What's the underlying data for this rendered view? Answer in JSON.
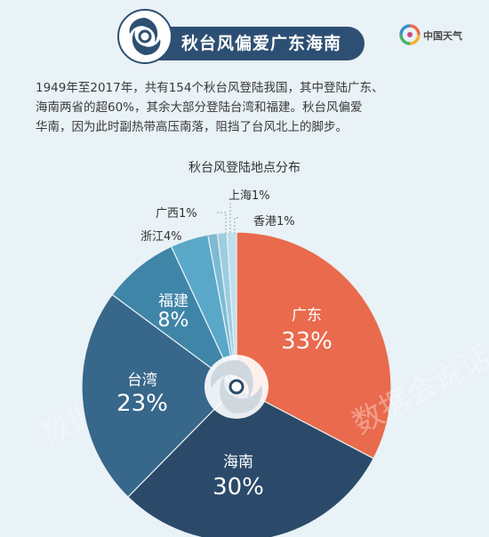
{
  "header": {
    "title": "秋台风偏爱广东海南",
    "brand": "中国天气",
    "intro": "1949年至2017年，共有154个秋台风登陆我国，其中登陆广东、\n海南两省的超60%，其余大部分登陆台湾和福建。秋台风偏爱\n华南，因为此时副热带高压南落，阻挡了台风北上的脚步。"
  },
  "watermark": "数据会说话",
  "chart_data": {
    "type": "pie",
    "title": "秋台风登陆地点分布",
    "slices": [
      {
        "label": "广东",
        "value": 33,
        "value_label": "33%",
        "color": "#e96a4d"
      },
      {
        "label": "海南",
        "value": 30,
        "value_label": "30%",
        "color": "#2b4a6a"
      },
      {
        "label": "台湾",
        "value": 23,
        "value_label": "23%",
        "color": "#37678a"
      },
      {
        "label": "福建",
        "value": 8,
        "value_label": "8%",
        "color": "#3f85a8"
      },
      {
        "label": "浙江",
        "value": 4,
        "value_label": "4%",
        "color": "#5aa8c8"
      },
      {
        "label": "广西",
        "value": 1,
        "value_label": "1%",
        "color": "#7cbbd4"
      },
      {
        "label": "上海",
        "value": 1,
        "value_label": "1%",
        "color": "#9ccde0"
      },
      {
        "label": "香港",
        "value": 1,
        "value_label": "1%",
        "color": "#bfe0ec"
      }
    ]
  }
}
